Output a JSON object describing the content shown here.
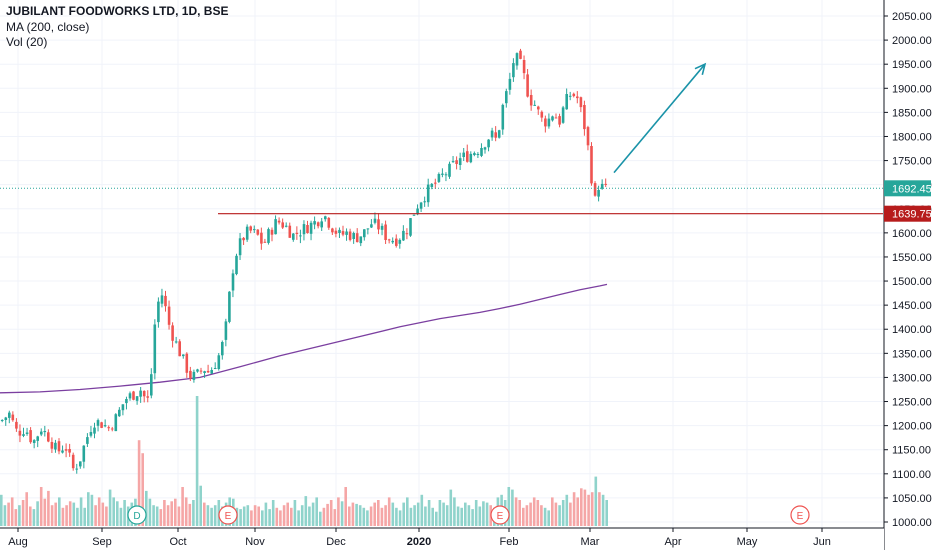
{
  "header": {
    "title": "JUBILANT FOODWORKS LTD, 1D, BSE",
    "ma_label": "MA (200, close)",
    "vol_label": "Vol (20)"
  },
  "chart_data": {
    "type": "candlestick",
    "title": "JUBILANT FOODWORKS LTD, 1D, BSE",
    "y_axis": {
      "position": "right",
      "ylim": [
        995,
        2060
      ],
      "ticks": [
        1000,
        1050,
        1100,
        1150,
        1200,
        1250,
        1300,
        1350,
        1400,
        1450,
        1500,
        1550,
        1600,
        1650,
        1700,
        1750,
        1800,
        1850,
        1900,
        1950,
        2000,
        2050
      ]
    },
    "x_axis": {
      "labels": [
        "Aug",
        "Sep",
        "Oct",
        "Nov",
        "Dec",
        "2020",
        "Feb",
        "Mar",
        "Apr",
        "May",
        "Jun"
      ],
      "bold_label": "2020"
    },
    "colors": {
      "up": "#26a69a",
      "down": "#ef5350",
      "vol_up": "#8fd3cb",
      "vol_down": "#f5a6a6",
      "ma": "#7b3fa0",
      "support_line": "#b71c1c",
      "last_price_line": "#26a69a",
      "arrow": "#1a93a8",
      "grid": "#f0f3fa"
    },
    "series": [
      {
        "name": "MA (200, close)",
        "type": "line",
        "points": [
          [
            0,
            1268
          ],
          [
            40,
            1270
          ],
          [
            80,
            1275
          ],
          [
            120,
            1282
          ],
          [
            160,
            1290
          ],
          [
            200,
            1300
          ],
          [
            240,
            1322
          ],
          [
            280,
            1345
          ],
          [
            320,
            1365
          ],
          [
            360,
            1385
          ],
          [
            400,
            1405
          ],
          [
            440,
            1422
          ],
          [
            480,
            1435
          ],
          [
            500,
            1443
          ],
          [
            520,
            1452
          ],
          [
            540,
            1462
          ],
          [
            560,
            1472
          ],
          [
            580,
            1482
          ],
          [
            600,
            1490
          ],
          [
            607,
            1493
          ]
        ]
      }
    ],
    "candle_path": [
      [
        0,
        1210
      ],
      [
        8,
        1225
      ],
      [
        16,
        1185
      ],
      [
        24,
        1195
      ],
      [
        32,
        1165
      ],
      [
        40,
        1195
      ],
      [
        48,
        1175
      ],
      [
        56,
        1145
      ],
      [
        64,
        1160
      ],
      [
        72,
        1110
      ],
      [
        78,
        1125
      ],
      [
        84,
        1165
      ],
      [
        92,
        1210
      ],
      [
        100,
        1205
      ],
      [
        108,
        1195
      ],
      [
        116,
        1220
      ],
      [
        124,
        1255
      ],
      [
        132,
        1265
      ],
      [
        140,
        1275
      ],
      [
        146,
        1245
      ],
      [
        150,
        1305
      ],
      [
        154,
        1420
      ],
      [
        158,
        1465
      ],
      [
        162,
        1475
      ],
      [
        166,
        1420
      ],
      [
        172,
        1385
      ],
      [
        178,
        1355
      ],
      [
        184,
        1325
      ],
      [
        190,
        1300
      ],
      [
        196,
        1305
      ],
      [
        202,
        1320
      ],
      [
        208,
        1310
      ],
      [
        214,
        1330
      ],
      [
        220,
        1355
      ],
      [
        226,
        1420
      ],
      [
        230,
        1510
      ],
      [
        236,
        1565
      ],
      [
        242,
        1590
      ],
      [
        248,
        1605
      ],
      [
        256,
        1595
      ],
      [
        262,
        1575
      ],
      [
        268,
        1600
      ],
      [
        276,
        1625
      ],
      [
        284,
        1615
      ],
      [
        292,
        1595
      ],
      [
        300,
        1605
      ],
      [
        308,
        1615
      ],
      [
        316,
        1625
      ],
      [
        322,
        1640
      ],
      [
        330,
        1615
      ],
      [
        338,
        1595
      ],
      [
        346,
        1600
      ],
      [
        354,
        1590
      ],
      [
        362,
        1598
      ],
      [
        370,
        1620
      ],
      [
        378,
        1612
      ],
      [
        386,
        1590
      ],
      [
        394,
        1585
      ],
      [
        400,
        1595
      ],
      [
        406,
        1610
      ],
      [
        412,
        1640
      ],
      [
        418,
        1665
      ],
      [
        424,
        1680
      ],
      [
        430,
        1695
      ],
      [
        436,
        1705
      ],
      [
        442,
        1720
      ],
      [
        448,
        1730
      ],
      [
        454,
        1745
      ],
      [
        460,
        1755
      ],
      [
        466,
        1760
      ],
      [
        472,
        1768
      ],
      [
        478,
        1775
      ],
      [
        484,
        1790
      ],
      [
        490,
        1805
      ],
      [
        496,
        1790
      ],
      [
        500,
        1850
      ],
      [
        504,
        1880
      ],
      [
        508,
        1910
      ],
      [
        512,
        1955
      ],
      [
        516,
        1960
      ],
      [
        520,
        1945
      ],
      [
        524,
        1915
      ],
      [
        528,
        1880
      ],
      [
        534,
        1865
      ],
      [
        540,
        1835
      ],
      [
        546,
        1830
      ],
      [
        552,
        1850
      ],
      [
        558,
        1830
      ],
      [
        564,
        1870
      ],
      [
        570,
        1890
      ],
      [
        576,
        1880
      ],
      [
        582,
        1835
      ],
      [
        586,
        1790
      ],
      [
        590,
        1720
      ],
      [
        594,
        1665
      ],
      [
        598,
        1705
      ],
      [
        602,
        1690
      ],
      [
        607,
        1692
      ]
    ],
    "volume": {
      "max_value": 100,
      "bars": [
        24,
        16,
        18,
        22,
        13,
        16,
        20,
        26,
        15,
        13,
        19,
        30,
        21,
        27,
        16,
        18,
        22,
        14,
        16,
        19,
        18,
        14,
        22,
        14,
        26,
        24,
        16,
        22,
        18,
        15,
        28,
        22,
        19,
        14,
        20,
        15,
        18,
        21,
        66,
        56,
        27,
        21,
        16,
        15,
        13,
        20,
        16,
        19,
        21,
        15,
        30,
        22,
        17,
        20,
        100,
        31,
        18,
        16,
        14,
        16,
        20,
        15,
        18,
        22,
        21,
        14,
        13,
        15,
        16,
        12,
        16,
        15,
        12,
        18,
        13,
        20,
        14,
        12,
        16,
        18,
        14,
        20,
        12,
        16,
        23,
        15,
        18,
        22,
        11,
        14,
        17,
        20,
        13,
        22,
        19,
        30,
        15,
        18,
        17,
        16,
        14,
        12,
        15,
        18,
        20,
        14,
        16,
        22,
        18,
        14,
        12,
        18,
        22,
        14,
        16,
        18,
        24,
        15,
        20,
        14,
        11,
        20,
        18,
        16,
        28,
        22,
        15,
        14,
        18,
        16,
        13,
        20,
        15,
        19,
        18,
        16,
        14,
        22,
        24,
        20,
        30,
        28,
        22,
        20,
        14,
        16,
        18,
        22,
        20,
        16,
        14,
        12,
        22,
        18,
        16,
        20,
        24,
        18,
        26,
        22,
        29,
        28,
        24,
        26,
        38,
        26,
        24,
        20
      ]
    },
    "event_markers": [
      {
        "label": "D",
        "x": 137,
        "color": "#26a69a"
      },
      {
        "label": "E",
        "x": 228,
        "color": "#ef5350"
      },
      {
        "label": "E",
        "x": 500,
        "color": "#ef5350"
      },
      {
        "label": "E",
        "x": 800,
        "color": "#ef5350"
      }
    ],
    "support_level": {
      "price": 1639.75,
      "label": "1639.75",
      "from_x": 218
    },
    "last_price": {
      "price": 1692.45,
      "label": "1692.45"
    },
    "projection_arrow": {
      "from": [
        614,
        1725
      ],
      "to": [
        705,
        1950
      ]
    }
  }
}
